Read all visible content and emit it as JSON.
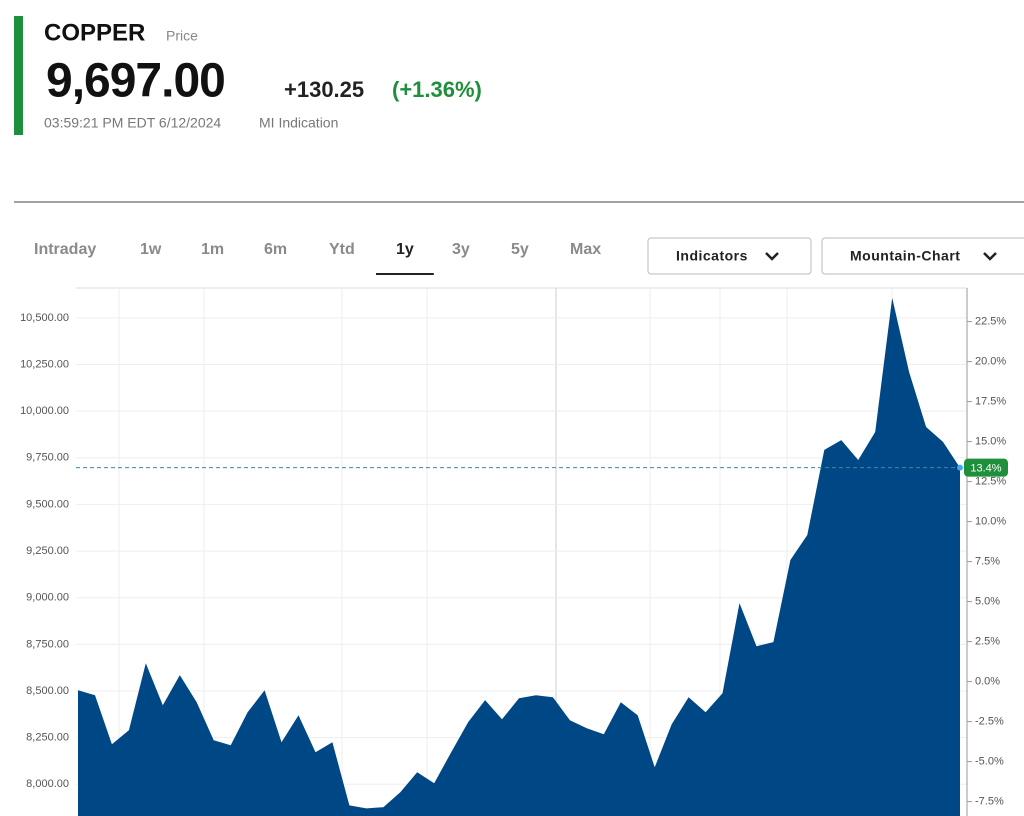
{
  "header": {
    "symbol": "COPPER",
    "symbol_note": "Price",
    "price": "9,697.00",
    "change": "+130.25",
    "change_pct": "(+1.36%)",
    "timestamp": "03:59:21 PM EDT 6/12/2024",
    "source": "MI Indication"
  },
  "tabs": [
    {
      "label": "Intraday",
      "selected": false
    },
    {
      "label": "1w",
      "selected": false
    },
    {
      "label": "1m",
      "selected": false
    },
    {
      "label": "6m",
      "selected": false
    },
    {
      "label": "Ytd",
      "selected": false
    },
    {
      "label": "1y",
      "selected": true
    },
    {
      "label": "3y",
      "selected": false
    },
    {
      "label": "5y",
      "selected": false
    },
    {
      "label": "Max",
      "selected": false
    }
  ],
  "buttons": [
    "Indicators",
    "Mountain-Chart"
  ],
  "chart_data": {
    "type": "area",
    "color": "#004785",
    "values": [
      8504,
      8477,
      8215,
      8290,
      8649,
      8424,
      8585,
      8440,
      8236,
      8209,
      8386,
      8504,
      8225,
      8370,
      8172,
      8225,
      7887,
      7871,
      7877,
      7957,
      8064,
      8005,
      8172,
      8333,
      8451,
      8349,
      8461,
      8477,
      8467,
      8343,
      8300,
      8268,
      8440,
      8370,
      8091,
      8322,
      8467,
      8386,
      8488,
      8971,
      8740,
      8762,
      9202,
      9336,
      9792,
      9845,
      9738,
      9888,
      10607,
      10210,
      9915,
      9835,
      9697
    ],
    "ylim": [
      7830,
      10660
    ],
    "yticks": [
      {
        "value": 8000,
        "label": "8,000.00"
      },
      {
        "value": 8250,
        "label": "8,250.00"
      },
      {
        "value": 8500,
        "label": "8,500.00"
      },
      {
        "value": 8750,
        "label": "8,750.00"
      },
      {
        "value": 9000,
        "label": "9,000.00"
      },
      {
        "value": 9250,
        "label": "9,250.00"
      },
      {
        "value": 9500,
        "label": "9,500.00"
      },
      {
        "value": 9750,
        "label": "9,750.00"
      },
      {
        "value": 10000,
        "label": "10,000.00"
      },
      {
        "value": 10250,
        "label": "10,250.00"
      },
      {
        "value": 10500,
        "label": "10,500.00"
      }
    ],
    "y2lim": [
      -8.4,
      24.6
    ],
    "y2ticks": [
      {
        "value": -7.5,
        "label": "-7.5%"
      },
      {
        "value": -5,
        "label": "-5.0%"
      },
      {
        "value": -2.5,
        "label": "-2.5%"
      },
      {
        "value": 0,
        "label": "0.0%"
      },
      {
        "value": 2.5,
        "label": "2.5%"
      },
      {
        "value": 5,
        "label": "5.0%"
      },
      {
        "value": 7.5,
        "label": "7.5%"
      },
      {
        "value": 10,
        "label": "10.0%"
      },
      {
        "value": 12.5,
        "label": "12.5%"
      },
      {
        "value": 15,
        "label": "15.0%"
      },
      {
        "value": 17.5,
        "label": "17.5%"
      },
      {
        "value": 20,
        "label": "20.0%"
      },
      {
        "value": 22.5,
        "label": "22.5%"
      }
    ],
    "grid": true,
    "current": {
      "value": 9697,
      "pct": 13.4,
      "label": "13.4%"
    }
  }
}
